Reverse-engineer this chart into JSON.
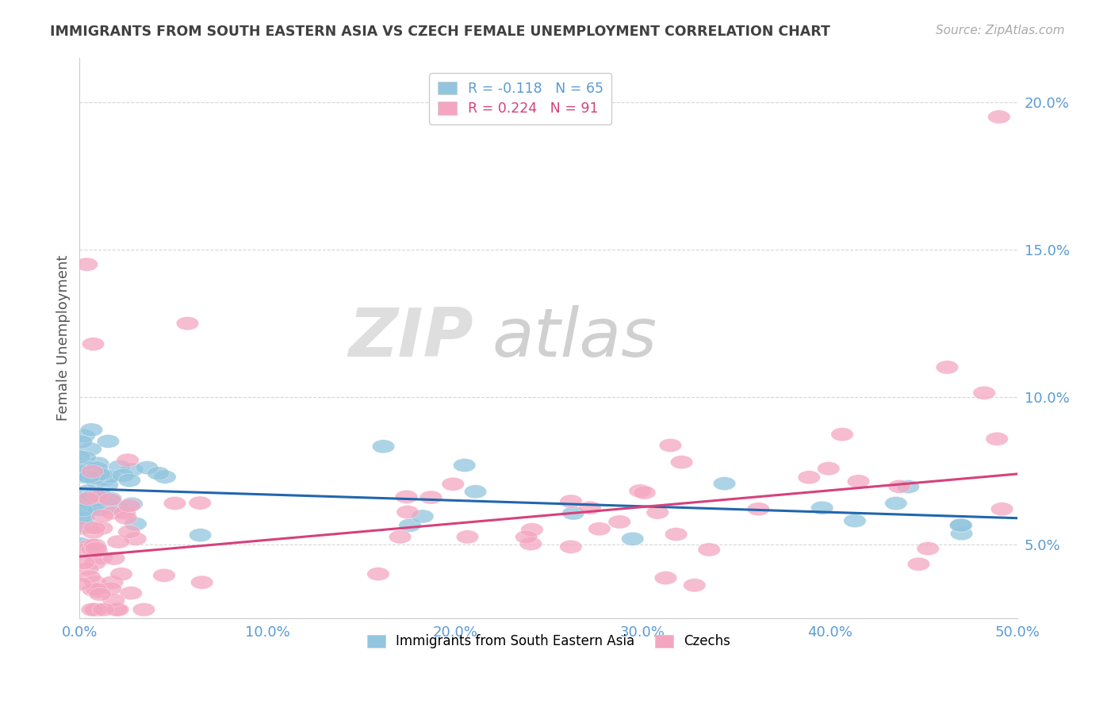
{
  "title": "IMMIGRANTS FROM SOUTH EASTERN ASIA VS CZECH FEMALE UNEMPLOYMENT CORRELATION CHART",
  "source_text": "Source: ZipAtlas.com",
  "ylabel": "Female Unemployment",
  "xlim": [
    0.0,
    0.5
  ],
  "ylim": [
    0.025,
    0.215
  ],
  "yticks": [
    0.05,
    0.1,
    0.15,
    0.2
  ],
  "ytick_labels": [
    "5.0%",
    "10.0%",
    "15.0%",
    "20.0%"
  ],
  "xticks": [
    0.0,
    0.1,
    0.2,
    0.3,
    0.4,
    0.5
  ],
  "xtick_labels": [
    "0.0%",
    "10.0%",
    "20.0%",
    "30.0%",
    "40.0%",
    "50.0%"
  ],
  "blue_color": "#92c5de",
  "pink_color": "#f4a6c0",
  "blue_line_color": "#2166ac",
  "pink_line_color": "#d6417b",
  "blue_label_R": "R = -0.118",
  "blue_label_N": "N = 65",
  "pink_label_R": "R = 0.224",
  "pink_label_N": "N = 91",
  "series1_label": "Immigrants from South Eastern Asia",
  "series2_label": "Czechs",
  "tick_color": "#5b9bd5",
  "title_color": "#404040",
  "source_color": "#aaaaaa",
  "ylabel_color": "#555555",
  "watermark_zip_color": "#dedede",
  "watermark_atlas_color": "#d0d0d0",
  "blue_trend": [
    0.069,
    0.059
  ],
  "pink_trend": [
    0.046,
    0.074
  ]
}
